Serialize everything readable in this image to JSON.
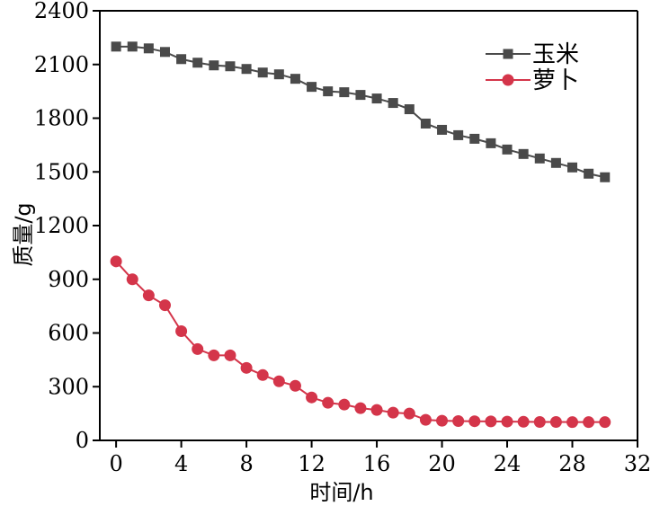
{
  "chart_data": {
    "type": "line",
    "xlabel": "时间/h",
    "ylabel": "质量/g",
    "xlim": [
      -1,
      32
    ],
    "ylim": [
      0,
      2400
    ],
    "x_ticks": [
      0,
      4,
      8,
      12,
      16,
      20,
      24,
      28,
      32
    ],
    "y_ticks": [
      0,
      300,
      600,
      900,
      1200,
      1500,
      1800,
      2100,
      2400
    ],
    "legend_position": "top-right",
    "grid": false,
    "series": [
      {
        "name": "玉米",
        "color": "#4a4a4a",
        "marker": "square",
        "x": [
          0,
          1,
          2,
          3,
          4,
          5,
          6,
          7,
          8,
          9,
          10,
          11,
          12,
          13,
          14,
          15,
          16,
          17,
          18,
          19,
          20,
          21,
          22,
          23,
          24,
          25,
          26,
          27,
          28,
          29,
          30
        ],
        "y": [
          2200,
          2200,
          2190,
          2170,
          2130,
          2110,
          2095,
          2090,
          2075,
          2055,
          2045,
          2020,
          1975,
          1950,
          1945,
          1930,
          1910,
          1885,
          1850,
          1770,
          1735,
          1705,
          1685,
          1660,
          1625,
          1600,
          1575,
          1550,
          1525,
          1490,
          1470
        ]
      },
      {
        "name": "萝卜",
        "color": "#d4354a",
        "marker": "circle",
        "x": [
          0,
          1,
          2,
          3,
          4,
          5,
          6,
          7,
          8,
          9,
          10,
          11,
          12,
          13,
          14,
          15,
          16,
          17,
          18,
          19,
          20,
          21,
          22,
          23,
          24,
          25,
          26,
          27,
          28,
          29,
          30
        ],
        "y": [
          1000,
          900,
          810,
          755,
          610,
          510,
          475,
          475,
          405,
          365,
          330,
          305,
          240,
          210,
          200,
          180,
          170,
          155,
          150,
          115,
          110,
          108,
          107,
          106,
          105,
          104,
          103,
          103,
          102,
          102,
          102
        ]
      }
    ]
  }
}
